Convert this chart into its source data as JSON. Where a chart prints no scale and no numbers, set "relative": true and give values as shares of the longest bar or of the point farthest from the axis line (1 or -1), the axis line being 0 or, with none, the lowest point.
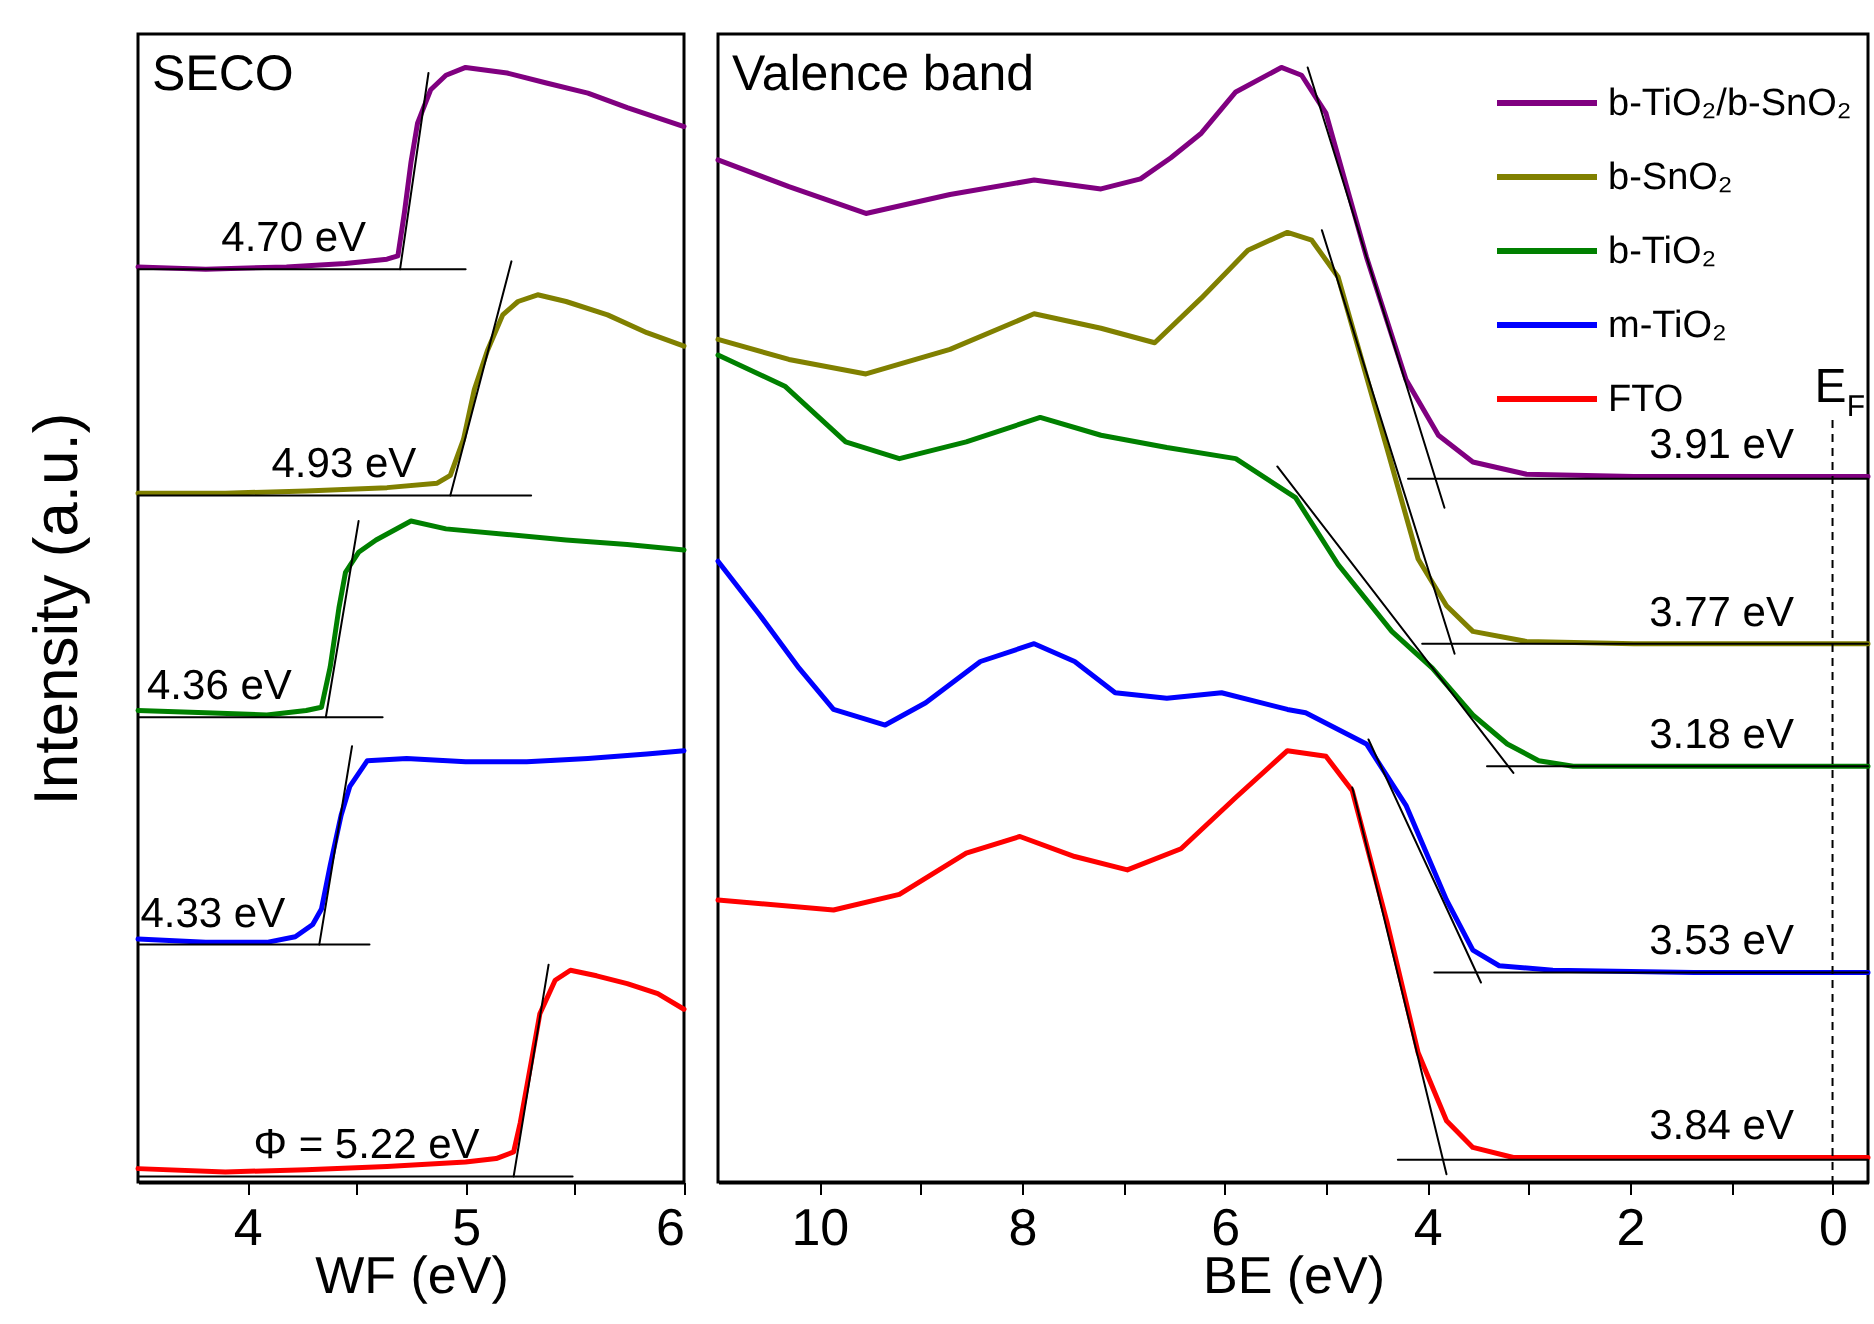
{
  "chart_data": [
    {
      "type": "line",
      "relative": true,
      "title": "SECO",
      "ylabel": "Intensity (a.u.)",
      "xlabel": "WF (eV)",
      "xlim": [
        3.5,
        6
      ],
      "xticks": [
        4,
        {
          "value": 4.5,
          "label": null
        },
        5,
        {
          "value": 5.5,
          "label": null
        },
        6
      ],
      "annotations": [
        {
          "text": "4.70 eV",
          "x": 4.7,
          "y": 0.819
        },
        {
          "text": "4.93 eV",
          "x": 4.93,
          "y": 0.616
        },
        {
          "text": "4.36 eV",
          "x": 4.36,
          "y": 0.417
        },
        {
          "text": "4.33 eV",
          "x": 4.33,
          "y": 0.213
        },
        {
          "text": "Φ = 5.22 eV",
          "x": 5.22,
          "y": 0.005
        }
      ],
      "series": [
        {
          "color": "#800080",
          "x": [
            3.5,
            3.81,
            4.18,
            4.45,
            4.64,
            4.69,
            4.72,
            4.75,
            4.78,
            4.84,
            4.91,
            5.0,
            5.19,
            5.37,
            5.56,
            5.74,
            6.0
          ],
          "values": [
            0.821,
            0.819,
            0.821,
            0.824,
            0.828,
            0.831,
            0.87,
            0.915,
            0.95,
            0.98,
            0.993,
            1.0,
            0.995,
            0.986,
            0.977,
            0.964,
            0.947
          ]
        },
        {
          "color": "#808000",
          "x": [
            3.5,
            3.9,
            4.27,
            4.64,
            4.87,
            4.93,
            4.99,
            5.04,
            5.1,
            5.17,
            5.24,
            5.33,
            5.46,
            5.65,
            5.83,
            6.0
          ],
          "values": [
            0.618,
            0.618,
            0.62,
            0.623,
            0.627,
            0.634,
            0.666,
            0.711,
            0.746,
            0.778,
            0.79,
            0.796,
            0.79,
            0.778,
            0.762,
            0.75
          ]
        },
        {
          "color": "#008000",
          "x": [
            3.5,
            3.81,
            4.09,
            4.27,
            4.34,
            4.38,
            4.42,
            4.45,
            4.51,
            4.59,
            4.75,
            4.91,
            5.19,
            5.46,
            5.74,
            6.0
          ],
          "values": [
            0.423,
            0.421,
            0.419,
            0.423,
            0.426,
            0.462,
            0.515,
            0.547,
            0.565,
            0.576,
            0.593,
            0.586,
            0.581,
            0.576,
            0.572,
            0.567
          ]
        },
        {
          "color": "#0000ff",
          "x": [
            3.5,
            3.81,
            4.09,
            4.22,
            4.3,
            4.34,
            4.38,
            4.43,
            4.47,
            4.55,
            4.73,
            5.0,
            5.28,
            5.56,
            5.83,
            6.0
          ],
          "values": [
            0.218,
            0.215,
            0.215,
            0.22,
            0.231,
            0.245,
            0.284,
            0.329,
            0.355,
            0.378,
            0.38,
            0.377,
            0.377,
            0.38,
            0.384,
            0.387
          ]
        },
        {
          "color": "#ff0000",
          "x": [
            3.5,
            3.9,
            4.27,
            4.64,
            5.0,
            5.14,
            5.22,
            5.25,
            5.3,
            5.34,
            5.41,
            5.48,
            5.6,
            5.74,
            5.88,
            6.0
          ],
          "values": [
            0.012,
            0.009,
            0.011,
            0.014,
            0.018,
            0.021,
            0.027,
            0.053,
            0.107,
            0.151,
            0.181,
            0.19,
            0.185,
            0.178,
            0.169,
            0.155
          ]
        },
        {
          "color": "#000000",
          "x": [
            4.7,
            4.83
          ],
          "values": [
            0.819,
            0.995
          ]
        },
        {
          "color": "#000000",
          "x": [
            3.5,
            5.0
          ],
          "values": [
            0.819,
            0.819
          ]
        },
        {
          "color": "#000000",
          "x": [
            4.93,
            5.21
          ],
          "values": [
            0.616,
            0.826
          ]
        },
        {
          "color": "#000000",
          "x": [
            3.5,
            5.3
          ],
          "values": [
            0.616,
            0.616
          ]
        },
        {
          "color": "#000000",
          "x": [
            4.36,
            4.51
          ],
          "values": [
            0.417,
            0.593
          ]
        },
        {
          "color": "#000000",
          "x": [
            3.5,
            4.62
          ],
          "values": [
            0.417,
            0.417
          ]
        },
        {
          "color": "#000000",
          "x": [
            4.33,
            4.48
          ],
          "values": [
            0.213,
            0.391
          ]
        },
        {
          "color": "#000000",
          "x": [
            3.5,
            4.56
          ],
          "values": [
            0.213,
            0.213
          ]
        },
        {
          "color": "#000000",
          "x": [
            5.22,
            5.38
          ],
          "values": [
            0.005,
            0.195
          ]
        },
        {
          "color": "#000000",
          "x": [
            3.5,
            5.49
          ],
          "values": [
            0.005,
            0.005
          ]
        }
      ]
    },
    {
      "type": "line",
      "relative": true,
      "title": "Valence band",
      "xlabel": "BE (eV)",
      "xlim": [
        11,
        -0.35
      ],
      "xticks": [
        10,
        {
          "value": 9,
          "label": null
        },
        8,
        {
          "value": 7,
          "label": null
        },
        6,
        {
          "value": 5,
          "label": null
        },
        4,
        {
          "value": 3,
          "label": null
        },
        2,
        {
          "value": 1,
          "label": null
        },
        0
      ],
      "legend": "top right",
      "ref_lines": [
        {
          "axis": "x",
          "value": 0,
          "label": "E$_{F}$",
          "line_style": "dashed"
        }
      ],
      "annotations": [
        "3.91 eV",
        "3.77 eV",
        "3.18 eV",
        "3.53 eV",
        "3.84 eV"
      ],
      "series": [
        {
          "name": "b-TiO₂/b-SnO₂",
          "color": "#800080",
          "x": [
            11.0,
            10.3,
            9.54,
            8.71,
            7.88,
            7.22,
            6.83,
            6.53,
            6.23,
            5.89,
            5.44,
            5.24,
            5.0,
            4.6,
            4.21,
            3.89,
            3.55,
            3.02,
            1.96,
            0.77,
            -0.35
          ],
          "values": [
            0.917,
            0.893,
            0.869,
            0.886,
            0.899,
            0.891,
            0.9,
            0.919,
            0.941,
            0.978,
            1.0,
            0.993,
            0.959,
            0.83,
            0.72,
            0.67,
            0.646,
            0.635,
            0.633,
            0.633,
            0.633
          ]
        },
        {
          "name": "b-SnO₂",
          "color": "#808000",
          "x": [
            11.0,
            10.3,
            9.54,
            8.71,
            7.88,
            7.22,
            6.69,
            6.23,
            5.77,
            5.38,
            5.14,
            4.88,
            4.4,
            4.09,
            3.81,
            3.55,
            3.02,
            1.96,
            0.77,
            -0.35
          ],
          "values": [
            0.756,
            0.738,
            0.725,
            0.747,
            0.779,
            0.766,
            0.753,
            0.793,
            0.836,
            0.852,
            0.845,
            0.812,
            0.659,
            0.559,
            0.517,
            0.494,
            0.485,
            0.483,
            0.483,
            0.483
          ]
        },
        {
          "name": "b-TiO₂",
          "color": "#008000",
          "x": [
            11.0,
            10.34,
            9.74,
            9.21,
            8.55,
            7.82,
            7.22,
            6.57,
            5.89,
            5.3,
            4.88,
            4.35,
            3.95,
            3.55,
            3.21,
            2.9,
            2.56,
            1.37,
            -0.35
          ],
          "values": [
            0.742,
            0.714,
            0.664,
            0.649,
            0.664,
            0.686,
            0.67,
            0.659,
            0.649,
            0.614,
            0.554,
            0.494,
            0.461,
            0.419,
            0.393,
            0.378,
            0.373,
            0.373,
            0.373
          ]
        },
        {
          "name": "m-TiO₂",
          "color": "#0000ff",
          "x": [
            11.0,
            10.59,
            10.2,
            9.86,
            9.35,
            8.95,
            8.41,
            7.88,
            7.48,
            7.08,
            6.57,
            6.03,
            5.38,
            5.2,
            4.6,
            4.21,
            3.81,
            3.55,
            3.29,
            2.76,
            1.37,
            -0.35
          ],
          "values": [
            0.557,
            0.509,
            0.461,
            0.424,
            0.41,
            0.43,
            0.467,
            0.483,
            0.467,
            0.439,
            0.434,
            0.439,
            0.424,
            0.421,
            0.393,
            0.338,
            0.253,
            0.208,
            0.194,
            0.19,
            0.188,
            0.188
          ]
        },
        {
          "name": "FTO",
          "color": "#ff0000",
          "x": [
            11.0,
            9.86,
            9.21,
            8.55,
            8.02,
            7.48,
            6.96,
            6.43,
            5.89,
            5.38,
            5.0,
            4.74,
            4.4,
            4.09,
            3.81,
            3.55,
            3.15,
            1.37,
            -0.35
          ],
          "values": [
            0.253,
            0.244,
            0.258,
            0.295,
            0.31,
            0.292,
            0.28,
            0.299,
            0.345,
            0.387,
            0.382,
            0.351,
            0.234,
            0.116,
            0.055,
            0.031,
            0.022,
            0.022,
            0.022
          ]
        },
        {
          "color": "#000000",
          "x": [
            5.18,
            3.83
          ],
          "values": [
            1.0,
            0.605
          ]
        },
        {
          "color": "#000000",
          "x": [
            4.19,
            -0.35
          ],
          "values": [
            0.631,
            0.631
          ]
        },
        {
          "color": "#000000",
          "x": [
            5.04,
            3.73
          ],
          "values": [
            0.854,
            0.474
          ]
        },
        {
          "color": "#000000",
          "x": [
            4.05,
            -0.35
          ],
          "values": [
            0.483,
            0.483
          ]
        },
        {
          "color": "#000000",
          "x": [
            5.48,
            3.15
          ],
          "values": [
            0.642,
            0.367
          ]
        },
        {
          "color": "#000000",
          "x": [
            3.41,
            -0.35
          ],
          "values": [
            0.373,
            0.373
          ]
        },
        {
          "color": "#000000",
          "x": [
            4.58,
            3.47
          ],
          "values": [
            0.397,
            0.179
          ]
        },
        {
          "color": "#000000",
          "x": [
            3.93,
            -0.35
          ],
          "values": [
            0.188,
            0.188
          ]
        },
        {
          "color": "#000000",
          "x": [
            4.74,
            3.81
          ],
          "values": [
            0.354,
            0.007
          ]
        },
        {
          "color": "#000000",
          "x": [
            4.29,
            -0.35
          ],
          "values": [
            0.02,
            0.02
          ]
        }
      ]
    }
  ]
}
